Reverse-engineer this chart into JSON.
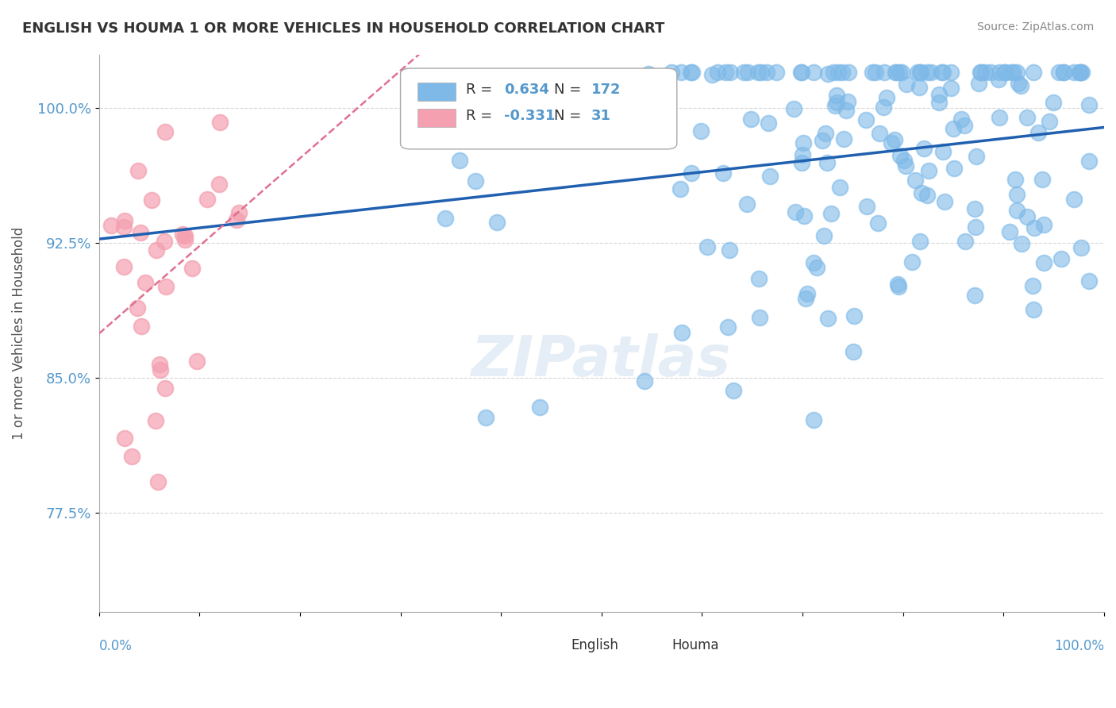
{
  "title": "ENGLISH VS HOUMA 1 OR MORE VEHICLES IN HOUSEHOLD CORRELATION CHART",
  "source_text": "Source: ZipAtlas.com",
  "ylabel": "1 or more Vehicles in Household",
  "watermark": "ZIPatlas",
  "legend_english_r_val": "0.634",
  "legend_english_n_val": "172",
  "legend_houma_r_val": "-0.331",
  "legend_houma_n_val": "31",
  "english_r": 0.634,
  "english_n": 172,
  "houma_r": -0.331,
  "houma_n": 31,
  "xlim": [
    0.0,
    1.0
  ],
  "ylim": [
    0.72,
    1.03
  ],
  "ytick_labels": [
    "77.5%",
    "85.0%",
    "92.5%",
    "100.0%"
  ],
  "ytick_values": [
    0.775,
    0.85,
    0.925,
    1.0
  ],
  "english_color": "#7EB9E8",
  "english_line_color": "#2060B0",
  "houma_color": "#F4A0B0",
  "houma_line_color": "#E07090",
  "background_color": "#FFFFFF",
  "grid_color": "#CCCCCC",
  "title_color": "#333333",
  "source_color": "#888888",
  "watermark_color": "#CCDDEE",
  "axis_label_color": "#5599CC",
  "tick_label_color": "#5599CC"
}
